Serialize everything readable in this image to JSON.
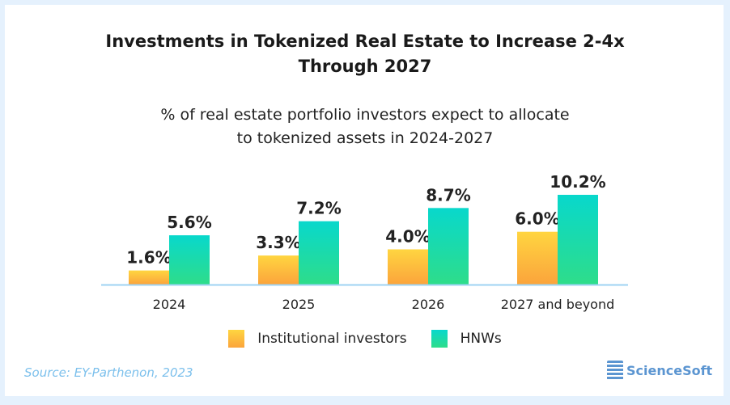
{
  "chart_data": {
    "type": "bar",
    "title": "Investments in Tokenized Real Estate to Increase 2-4x Through 2027",
    "subtitle": "% of real estate portfolio investors expect to allocate to tokenized assets in 2024-2027",
    "categories": [
      "2024",
      "2025",
      "2026",
      "2027 and beyond"
    ],
    "series": [
      {
        "name": "Institutional investors",
        "values": [
          1.6,
          3.3,
          4.0,
          6.0
        ],
        "labels": [
          "1.6%",
          "3.3%",
          "4.0%",
          "6.0%"
        ],
        "colors": [
          "#ffd540",
          "#fba43c"
        ]
      },
      {
        "name": "HNWs",
        "values": [
          5.6,
          7.2,
          8.7,
          10.2
        ],
        "labels": [
          "5.6%",
          "7.2%",
          "8.7%",
          "10.2%"
        ],
        "colors": [
          "#08d8cc",
          "#2edd8a"
        ]
      }
    ],
    "ylim": [
      0,
      10.2
    ],
    "grid": false,
    "legend": "bottom"
  },
  "title_line1": "Investments in Tokenized Real Estate to Increase 2-4x",
  "title_line2": "Through 2027",
  "subtitle_line1": "% of real estate portfolio investors expect to allocate",
  "subtitle_line2": "to tokenized assets in 2024-2027",
  "source": "Source: EY-Parthenon, 2023",
  "logo": "ScienceSoft"
}
